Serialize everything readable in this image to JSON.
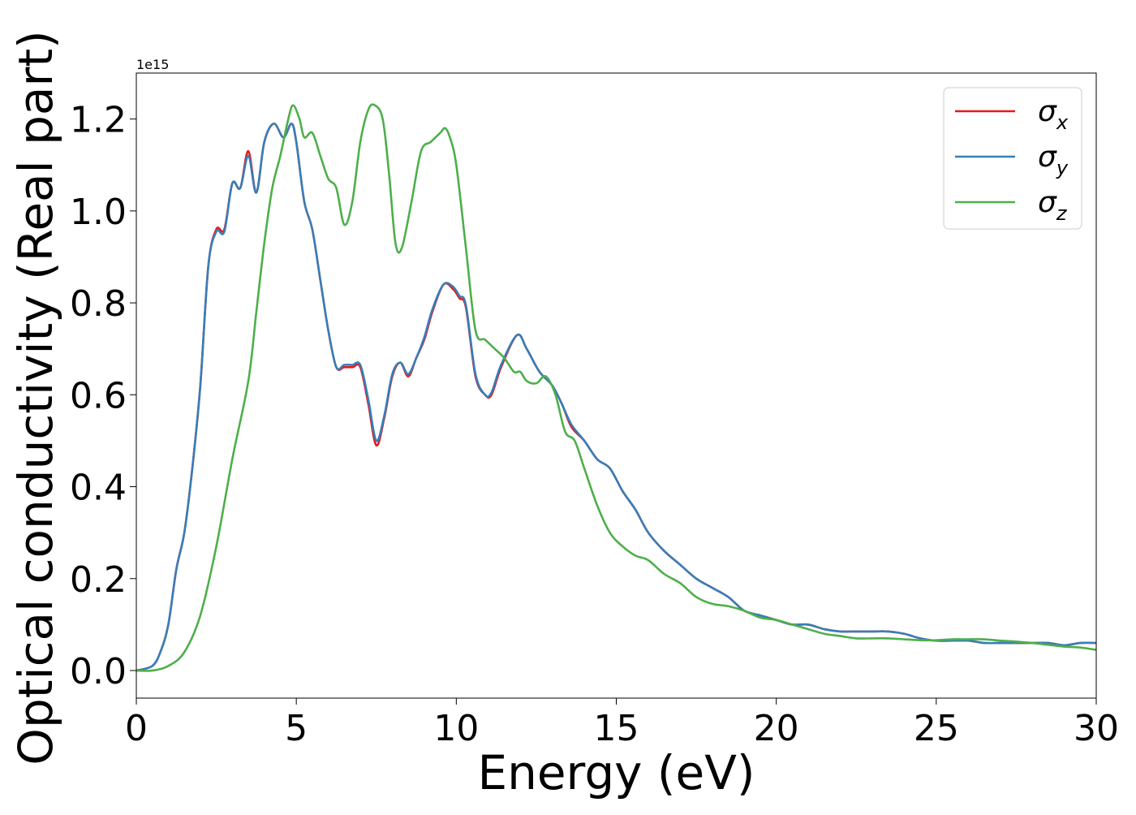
{
  "chart_data": {
    "type": "line",
    "xlabel": "Energy (eV)",
    "ylabel": "Optical conductivity (Real part)",
    "y_offset_text": "1e15",
    "y_multiplier": 1000000000000000.0,
    "xlim": [
      0,
      30
    ],
    "ylim": [
      -0.06,
      1.3
    ],
    "x_ticks": [
      0,
      5,
      10,
      15,
      20,
      25,
      30
    ],
    "y_ticks": [
      0.0,
      0.2,
      0.4,
      0.6,
      0.8,
      1.0,
      1.2
    ],
    "x_tick_labels": [
      "0",
      "5",
      "10",
      "15",
      "20",
      "25",
      "30"
    ],
    "y_tick_labels": [
      "0.0",
      "0.2",
      "0.4",
      "0.6",
      "0.8",
      "1.0",
      "1.2"
    ],
    "grid": false,
    "legend_position": "top-right",
    "series": [
      {
        "name": "σx",
        "legend_base": "σ",
        "legend_sub": "x",
        "color": "#e41a1c",
        "x": [
          0,
          0.5,
          0.75,
          1.0,
          1.25,
          1.5,
          1.75,
          2.0,
          2.25,
          2.5,
          2.75,
          3.0,
          3.25,
          3.5,
          3.75,
          4.0,
          4.3,
          4.6,
          4.85,
          5.0,
          5.25,
          5.5,
          5.75,
          6.0,
          6.25,
          6.5,
          6.75,
          7.0,
          7.25,
          7.5,
          7.75,
          8.0,
          8.25,
          8.5,
          8.75,
          9.0,
          9.25,
          9.6,
          9.9,
          10.1,
          10.3,
          10.6,
          10.9,
          11.1,
          11.4,
          11.9,
          12.2,
          12.6,
          13.0,
          13.3,
          13.6,
          14.0,
          14.4,
          14.8,
          15.2,
          15.6,
          16.0,
          16.5,
          17.0,
          17.5,
          18.0,
          18.5,
          19.0,
          19.5,
          20.0,
          20.5,
          21.0,
          21.5,
          22.0,
          22.5,
          23.0,
          23.5,
          24.0,
          24.5,
          25.0,
          25.5,
          26.0,
          26.5,
          27.0,
          27.5,
          28.0,
          28.5,
          29.0,
          29.5,
          30.0
        ],
        "values": [
          0.0,
          0.01,
          0.04,
          0.1,
          0.22,
          0.3,
          0.44,
          0.62,
          0.88,
          0.96,
          0.96,
          1.06,
          1.05,
          1.13,
          1.04,
          1.15,
          1.19,
          1.16,
          1.19,
          1.15,
          1.02,
          0.96,
          0.85,
          0.74,
          0.66,
          0.66,
          0.66,
          0.66,
          0.58,
          0.49,
          0.55,
          0.64,
          0.67,
          0.64,
          0.68,
          0.72,
          0.78,
          0.84,
          0.83,
          0.81,
          0.79,
          0.64,
          0.6,
          0.6,
          0.66,
          0.73,
          0.7,
          0.65,
          0.62,
          0.58,
          0.53,
          0.5,
          0.46,
          0.44,
          0.39,
          0.35,
          0.3,
          0.26,
          0.23,
          0.2,
          0.18,
          0.16,
          0.13,
          0.12,
          0.11,
          0.1,
          0.1,
          0.09,
          0.085,
          0.085,
          0.085,
          0.085,
          0.08,
          0.07,
          0.065,
          0.065,
          0.065,
          0.06,
          0.06,
          0.06,
          0.06,
          0.06,
          0.055,
          0.06,
          0.06
        ]
      },
      {
        "name": "σy",
        "legend_base": "σ",
        "legend_sub": "y",
        "color": "#377eb8",
        "x": [
          0,
          0.5,
          0.75,
          1.0,
          1.25,
          1.5,
          1.75,
          2.0,
          2.25,
          2.5,
          2.75,
          3.0,
          3.25,
          3.5,
          3.75,
          4.0,
          4.3,
          4.6,
          4.85,
          5.0,
          5.25,
          5.5,
          5.75,
          6.0,
          6.25,
          6.5,
          6.75,
          7.0,
          7.25,
          7.5,
          7.75,
          8.0,
          8.25,
          8.5,
          8.75,
          9.0,
          9.25,
          9.6,
          9.9,
          10.1,
          10.3,
          10.6,
          10.9,
          11.1,
          11.4,
          11.9,
          12.2,
          12.6,
          13.0,
          13.3,
          13.6,
          14.0,
          14.4,
          14.8,
          15.2,
          15.6,
          16.0,
          16.5,
          17.0,
          17.5,
          18.0,
          18.5,
          19.0,
          19.5,
          20.0,
          20.5,
          21.0,
          21.5,
          22.0,
          22.5,
          23.0,
          23.5,
          24.0,
          24.5,
          25.0,
          25.5,
          26.0,
          26.5,
          27.0,
          27.5,
          28.0,
          28.5,
          29.0,
          29.5,
          30.0
        ],
        "values": [
          0.0,
          0.01,
          0.04,
          0.1,
          0.22,
          0.3,
          0.44,
          0.62,
          0.88,
          0.955,
          0.955,
          1.06,
          1.05,
          1.12,
          1.04,
          1.15,
          1.19,
          1.16,
          1.19,
          1.15,
          1.02,
          0.96,
          0.85,
          0.74,
          0.66,
          0.665,
          0.665,
          0.665,
          0.59,
          0.5,
          0.555,
          0.645,
          0.67,
          0.645,
          0.68,
          0.725,
          0.785,
          0.84,
          0.835,
          0.815,
          0.795,
          0.645,
          0.6,
          0.605,
          0.665,
          0.73,
          0.7,
          0.65,
          0.62,
          0.58,
          0.535,
          0.5,
          0.46,
          0.44,
          0.39,
          0.35,
          0.3,
          0.26,
          0.23,
          0.2,
          0.18,
          0.16,
          0.13,
          0.12,
          0.11,
          0.1,
          0.1,
          0.09,
          0.085,
          0.085,
          0.085,
          0.085,
          0.08,
          0.07,
          0.065,
          0.065,
          0.065,
          0.06,
          0.06,
          0.06,
          0.06,
          0.06,
          0.055,
          0.06,
          0.06
        ]
      },
      {
        "name": "σz",
        "legend_base": "σ",
        "legend_sub": "z",
        "color": "#4daf4a",
        "x": [
          0,
          0.5,
          1.0,
          1.5,
          2.0,
          2.5,
          3.0,
          3.5,
          3.75,
          4.0,
          4.25,
          4.5,
          4.75,
          4.9,
          5.1,
          5.25,
          5.5,
          5.75,
          6.0,
          6.25,
          6.5,
          6.75,
          7.0,
          7.25,
          7.45,
          7.7,
          7.9,
          8.1,
          8.3,
          8.6,
          8.9,
          9.2,
          9.5,
          9.65,
          9.8,
          10.0,
          10.3,
          10.6,
          10.9,
          11.2,
          11.5,
          11.8,
          12.0,
          12.2,
          12.5,
          12.8,
          13.1,
          13.4,
          13.7,
          14.0,
          14.4,
          14.8,
          15.2,
          15.6,
          16.0,
          16.5,
          17.0,
          17.5,
          18.0,
          18.5,
          19.0,
          19.5,
          20.0,
          20.5,
          21.0,
          21.5,
          22.0,
          22.5,
          23.0,
          23.5,
          24.0,
          24.5,
          25.0,
          25.5,
          26.0,
          26.5,
          27.0,
          27.5,
          28.0,
          28.5,
          29.0,
          29.5,
          30.0
        ],
        "values": [
          0.0,
          0.0,
          0.01,
          0.04,
          0.12,
          0.27,
          0.46,
          0.63,
          0.78,
          0.93,
          1.05,
          1.12,
          1.2,
          1.23,
          1.2,
          1.16,
          1.17,
          1.12,
          1.07,
          1.05,
          0.97,
          1.02,
          1.15,
          1.22,
          1.23,
          1.2,
          1.08,
          0.93,
          0.92,
          1.02,
          1.13,
          1.15,
          1.17,
          1.18,
          1.16,
          1.1,
          0.92,
          0.74,
          0.72,
          0.7,
          0.68,
          0.65,
          0.65,
          0.63,
          0.625,
          0.64,
          0.6,
          0.52,
          0.5,
          0.44,
          0.36,
          0.3,
          0.27,
          0.25,
          0.24,
          0.21,
          0.19,
          0.16,
          0.145,
          0.14,
          0.13,
          0.115,
          0.11,
          0.1,
          0.09,
          0.08,
          0.075,
          0.07,
          0.07,
          0.07,
          0.068,
          0.066,
          0.066,
          0.068,
          0.068,
          0.068,
          0.065,
          0.063,
          0.06,
          0.056,
          0.052,
          0.05,
          0.045
        ]
      }
    ]
  }
}
